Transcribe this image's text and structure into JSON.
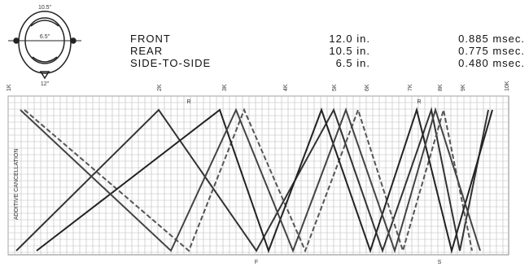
{
  "diagram": {
    "labels": {
      "top": "10.5\"",
      "middle": "6.5\"",
      "bottom": "12\""
    }
  },
  "table": {
    "rows": [
      [
        "FRONT",
        "12.0 in.",
        "0.885 msec."
      ],
      [
        "REAR",
        "10.5 in.",
        "0.775 msec."
      ],
      [
        "SIDE-TO-SIDE",
        "6.5 in.",
        "0.480 msec."
      ]
    ]
  },
  "graph": {
    "freq_labels": [
      "1K",
      "2K",
      "3K",
      "4K",
      "5K",
      "6K",
      "7K",
      "8K",
      "9K",
      "10K"
    ],
    "axis_label": "ADDITIVE CANCELLATION",
    "brackets": [
      "R",
      "F",
      "R",
      "S"
    ]
  }
}
